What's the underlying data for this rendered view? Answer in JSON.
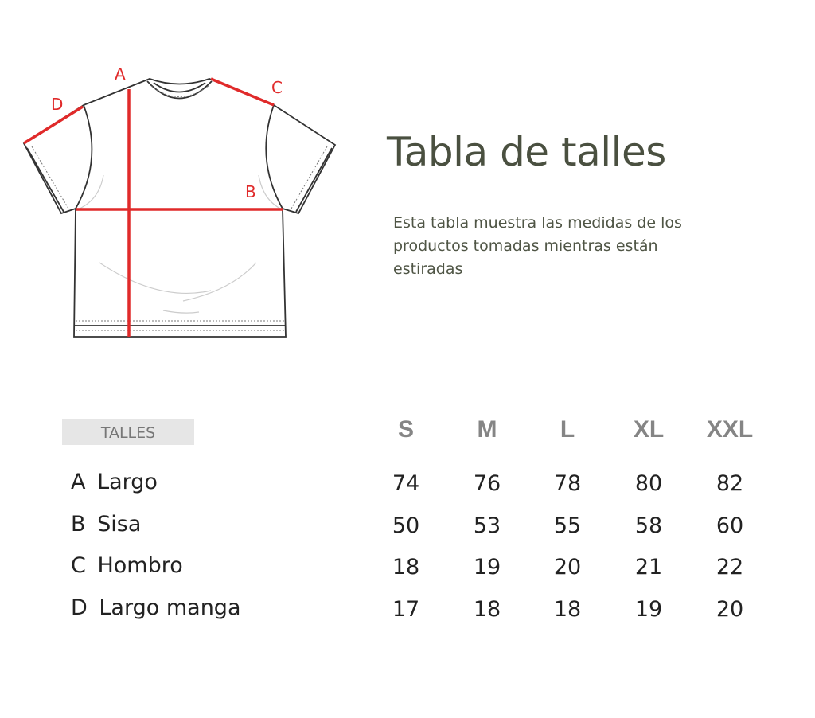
{
  "diagram": {
    "labels": [
      "A",
      "B",
      "C",
      "D"
    ],
    "measure_color": "#e02a2a"
  },
  "title": "Tabla de talles",
  "description": "Esta tabla muestra las medidas de los productos tomadas mientras están estiradas",
  "table": {
    "header_label": "TALLES",
    "sizes": [
      "S",
      "M",
      "L",
      "XL",
      "XXL"
    ],
    "rows": [
      {
        "letter": "A",
        "name": "Largo",
        "values": [
          "74",
          "76",
          "78",
          "80",
          "82"
        ]
      },
      {
        "letter": "B",
        "name": "Sisa",
        "values": [
          "50",
          "53",
          "55",
          "58",
          "60"
        ]
      },
      {
        "letter": "C",
        "name": "Hombro",
        "values": [
          "18",
          "19",
          "20",
          "21",
          "22"
        ]
      },
      {
        "letter": "D",
        "name": "Largo manga",
        "values": [
          "17",
          "18",
          "18",
          "19",
          "20"
        ]
      }
    ]
  }
}
